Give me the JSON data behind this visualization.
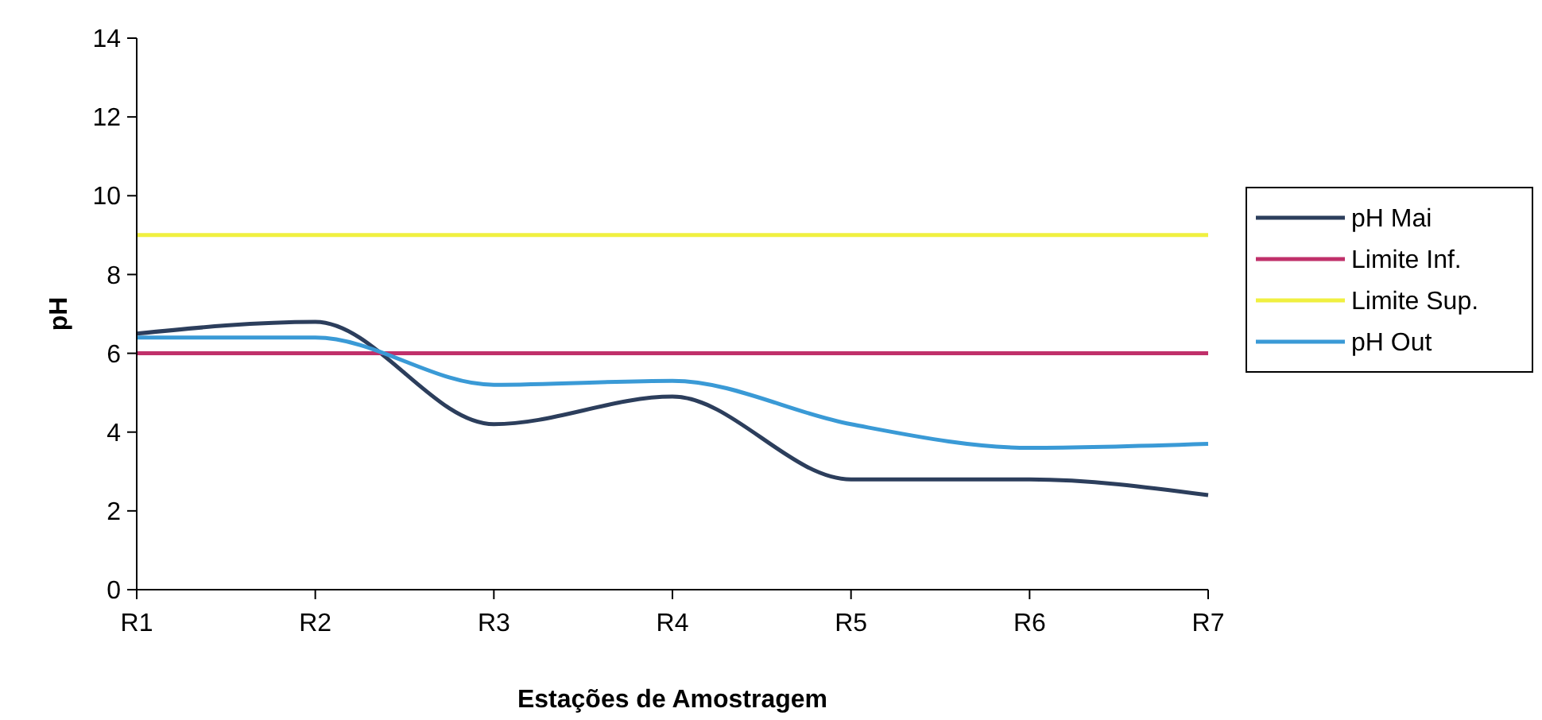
{
  "chart_data": {
    "type": "line",
    "xlabel": "Estações de Amostragem",
    "ylabel": "pH",
    "categories": [
      "R1",
      "R2",
      "R3",
      "R4",
      "R5",
      "R6",
      "R7"
    ],
    "series": [
      {
        "name": "pH Mai",
        "color": "#2c3e5c",
        "values": [
          6.5,
          6.8,
          4.2,
          4.9,
          2.8,
          2.8,
          2.4
        ]
      },
      {
        "name": "Limite Inf.",
        "color": "#c0306a",
        "values": [
          6,
          6,
          6,
          6,
          6,
          6,
          6
        ]
      },
      {
        "name": "Limite Sup.",
        "color": "#f0f040",
        "values": [
          9,
          9,
          9,
          9,
          9,
          9,
          9
        ]
      },
      {
        "name": "pH Out",
        "color": "#3a9ad6",
        "values": [
          6.4,
          6.4,
          5.2,
          5.3,
          4.2,
          3.6,
          3.7
        ]
      }
    ],
    "ylim": [
      0,
      14
    ],
    "yticks": [
      0,
      2,
      4,
      6,
      8,
      10,
      12,
      14
    ],
    "grid": false,
    "legend": "right",
    "marker": "none",
    "line_style": "solid"
  }
}
